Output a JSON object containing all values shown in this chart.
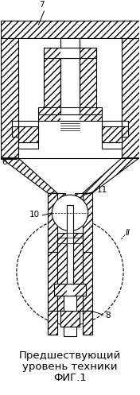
{
  "title_line1": "Предшествующий",
  "title_line2": "уровень техники",
  "title_line3": "ФИГ.1",
  "bg_color": "#ffffff",
  "line_color": "#000000",
  "label_7": "7",
  "label_6": "6",
  "label_10": "10",
  "label_11": "11",
  "label_8": "8",
  "label_II": "II",
  "fig_width": 1.76,
  "fig_height": 4.97,
  "dpi": 100,
  "title_fontsize": 9.5
}
